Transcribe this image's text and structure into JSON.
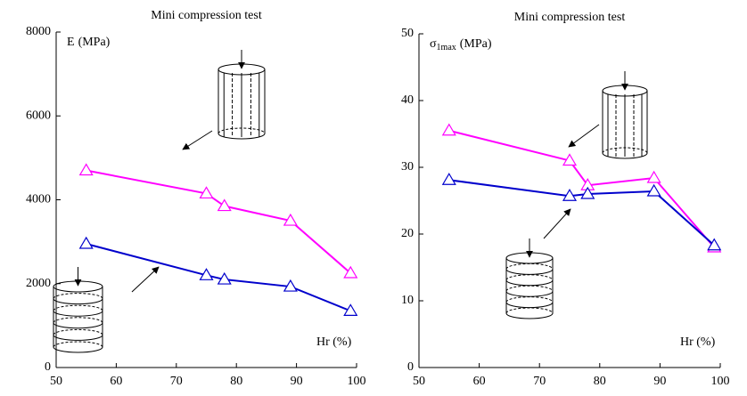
{
  "chart_data": [
    {
      "type": "line",
      "title": "Mini compression test",
      "ylabel": {
        "symbol": "E",
        "subscript": null,
        "unit": "(MPa)"
      },
      "xlabel": "Hr (%)",
      "x": [
        55,
        75,
        78,
        89,
        99
      ],
      "series": [
        {
          "color": "#ff00ff",
          "values": [
            4700,
            4150,
            3850,
            3500,
            2250
          ]
        },
        {
          "color": "#0000cc",
          "values": [
            2950,
            2200,
            2100,
            1930,
            1350
          ]
        }
      ],
      "xlim": [
        50,
        100
      ],
      "xticks": [
        50,
        60,
        70,
        80,
        90,
        100
      ],
      "ylim": [
        0,
        8000
      ],
      "yticks": [
        0,
        2000,
        4000,
        6000,
        8000
      ],
      "marker": "triangle"
    },
    {
      "type": "line",
      "title": "Mini compression test",
      "ylabel": {
        "symbol": "σ",
        "subscript": "1max",
        "unit": "(MPa)"
      },
      "xlabel": "Hr (%)",
      "x": [
        55,
        75,
        78,
        89,
        99
      ],
      "series": [
        {
          "color": "#ff00ff",
          "values": [
            35.5,
            31,
            27.3,
            28.4,
            18
          ]
        },
        {
          "color": "#0000cc",
          "values": [
            28.1,
            25.7,
            26,
            26.4,
            18.3
          ]
        }
      ],
      "xlim": [
        50,
        100
      ],
      "xticks": [
        50,
        60,
        70,
        80,
        90,
        100
      ],
      "ylim": [
        0,
        50
      ],
      "yticks": [
        0,
        10,
        20,
        30,
        40,
        50
      ],
      "marker": "triangle"
    }
  ]
}
